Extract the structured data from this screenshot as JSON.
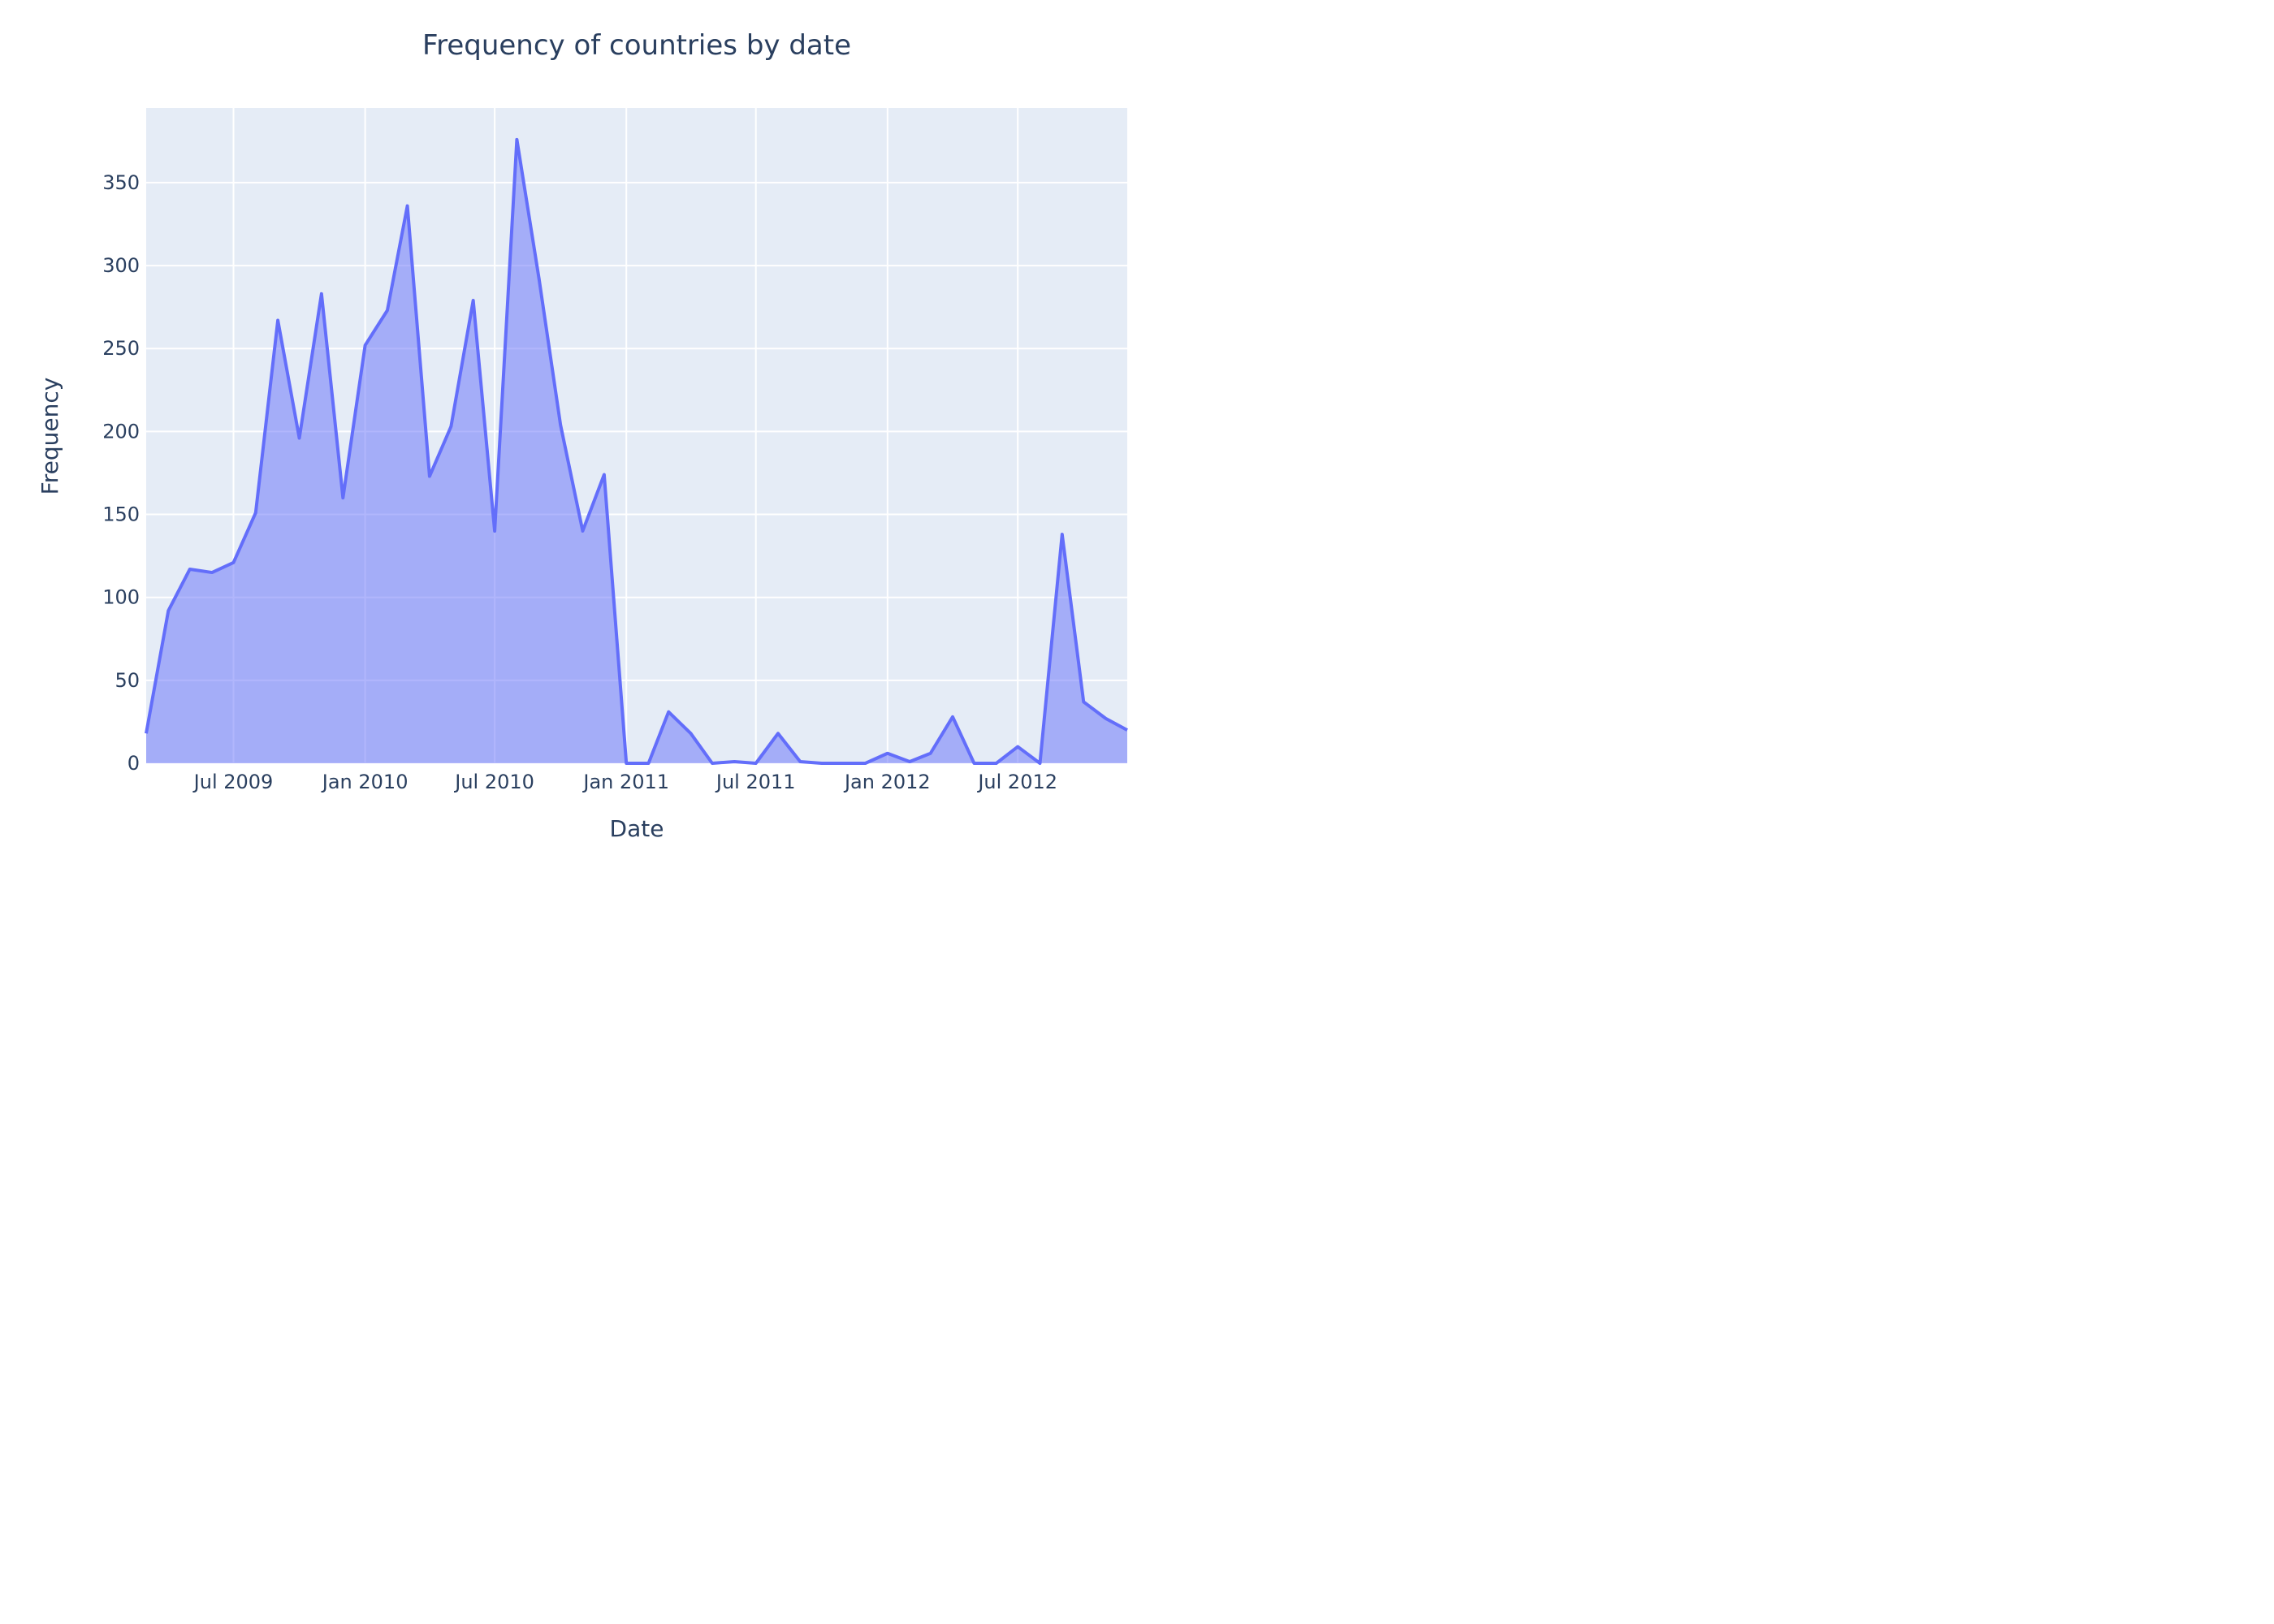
{
  "chart_data": {
    "type": "area",
    "title": "Frequency of countries by date",
    "xlabel": "Date",
    "ylabel": "Frequency",
    "x_range": [
      "2009-03-01",
      "2012-12-01"
    ],
    "ylim": [
      0,
      395
    ],
    "y_ticks": [
      0,
      50,
      100,
      150,
      200,
      250,
      300,
      350
    ],
    "x_ticks": [
      {
        "date": "2009-07-01",
        "label": "Jul 2009"
      },
      {
        "date": "2010-01-01",
        "label": "Jan 2010"
      },
      {
        "date": "2010-07-01",
        "label": "Jul 2010"
      },
      {
        "date": "2011-01-01",
        "label": "Jan 2011"
      },
      {
        "date": "2011-07-01",
        "label": "Jul 2011"
      },
      {
        "date": "2012-01-01",
        "label": "Jan 2012"
      },
      {
        "date": "2012-07-01",
        "label": "Jul 2012"
      }
    ],
    "grid": true,
    "legend": "none",
    "colors": {
      "line": "#636efa",
      "fill": "rgba(99,110,250,0.5)",
      "plot_bg": "#e5ecf6",
      "grid": "#ffffff",
      "text": "#2a3f5f"
    },
    "x": [
      "2009-03-01",
      "2009-04-01",
      "2009-05-01",
      "2009-06-01",
      "2009-07-01",
      "2009-08-01",
      "2009-09-01",
      "2009-10-01",
      "2009-11-01",
      "2009-12-01",
      "2010-01-01",
      "2010-02-01",
      "2010-03-01",
      "2010-04-01",
      "2010-05-01",
      "2010-06-01",
      "2010-07-01",
      "2010-08-01",
      "2010-09-01",
      "2010-10-01",
      "2010-11-01",
      "2010-12-01",
      "2011-01-01",
      "2011-02-01",
      "2011-03-01",
      "2011-04-01",
      "2011-05-01",
      "2011-06-01",
      "2011-07-01",
      "2011-08-01",
      "2011-09-01",
      "2011-10-01",
      "2011-11-01",
      "2011-12-01",
      "2012-01-01",
      "2012-02-01",
      "2012-03-01",
      "2012-04-01",
      "2012-05-01",
      "2012-06-01",
      "2012-07-01",
      "2012-08-01",
      "2012-09-01",
      "2012-10-01",
      "2012-11-01",
      "2012-12-01"
    ],
    "values": [
      18,
      92,
      117,
      115,
      121,
      151,
      267,
      196,
      283,
      160,
      252,
      273,
      336,
      173,
      203,
      279,
      140,
      376,
      292,
      204,
      140,
      174,
      0,
      0,
      31,
      18,
      0,
      1,
      0,
      18,
      1,
      0,
      0,
      0,
      6,
      1,
      6,
      28,
      0,
      0,
      10,
      0,
      138,
      37,
      27,
      20
    ]
  }
}
